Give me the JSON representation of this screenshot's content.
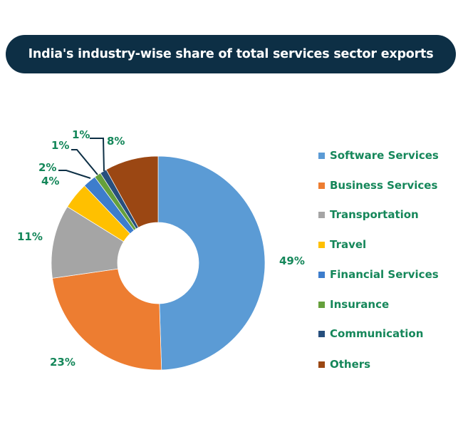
{
  "chart_data": {
    "type": "pie",
    "variant": "donut",
    "title": "India's industry-wise share of total services sector exports",
    "categories": [
      "Software Services",
      "Business Services",
      "Transportation",
      "Travel",
      "Financial Services",
      "Insurance",
      "Communication",
      "Others"
    ],
    "values": [
      49,
      23,
      11,
      4,
      2,
      1,
      1,
      8
    ],
    "data_labels": [
      "49%",
      "23%",
      "11%",
      "4%",
      "2%",
      "1%",
      "1%",
      "8%"
    ],
    "colors": [
      "#5b9bd5",
      "#ed7d31",
      "#a5a5a5",
      "#ffc000",
      "#3d7dcc",
      "#65a03c",
      "#274f7d",
      "#9b4713"
    ],
    "legend_placement": "right",
    "unit": "%"
  }
}
